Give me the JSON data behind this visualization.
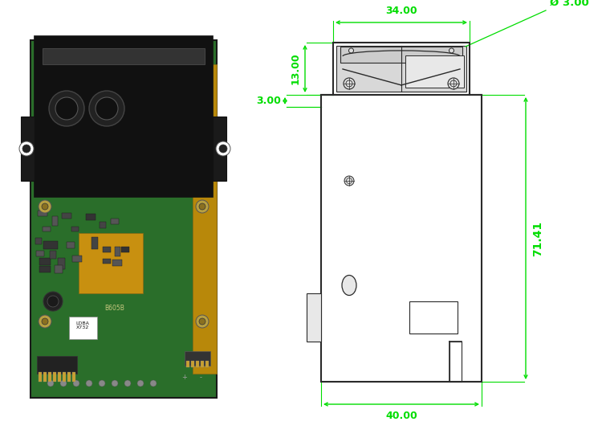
{
  "bg_color": "#ffffff",
  "dim_color": "#00dd00",
  "draw_color": "#2a2a2a",
  "fig_width": 7.5,
  "fig_height": 5.5,
  "dim_13_text": "13.00",
  "dim_34_text": "34.00",
  "dim_3_text": "Ø 3.00",
  "dim_3left_text": "3.00",
  "dim_71_text": "71.41",
  "dim_40_text": "40.00"
}
